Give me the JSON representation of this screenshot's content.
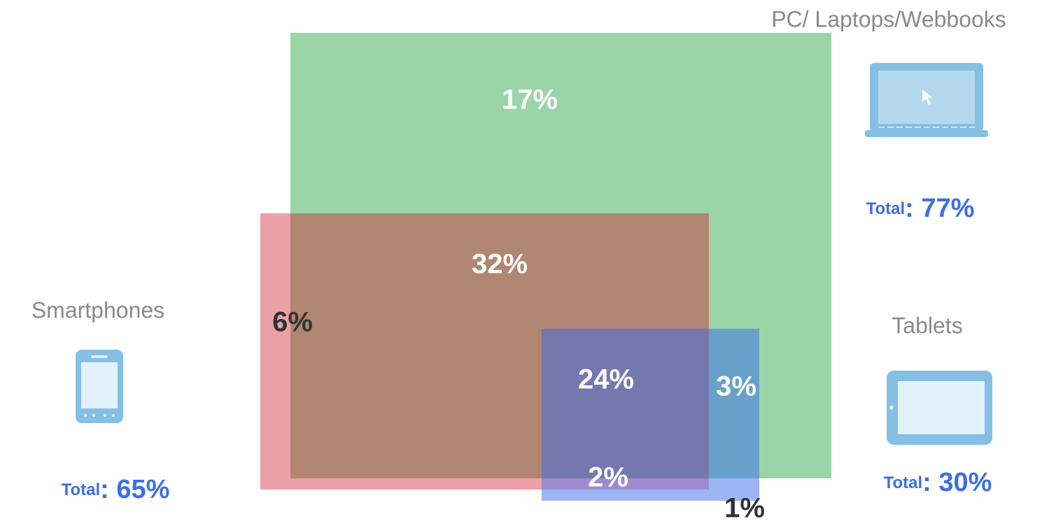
{
  "groups": [
    {
      "name": "PC/ Laptops/Webbooks",
      "total_label": "Total",
      "total_value": ": 77%"
    },
    {
      "name": "Smartphones",
      "total_label": "Total",
      "total_value": ": 65%"
    },
    {
      "name": "Tablets",
      "total_label": "Total",
      "total_value": ": 30%"
    }
  ],
  "regions": {
    "pc_only": "17%",
    "pc_smartphone": "32%",
    "smartphone_only": "6%",
    "all_three": "24%",
    "pc_tablet": "3%",
    "smartphone_tablet": "2%",
    "tablet_only": "1%"
  }
}
